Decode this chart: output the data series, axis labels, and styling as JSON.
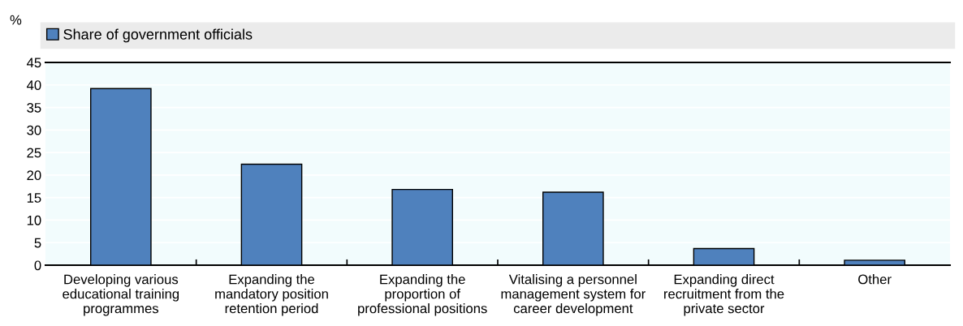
{
  "chart_data": {
    "type": "bar",
    "ylabel": "%",
    "categories": [
      "Developing various\neducational training\nprogrammes",
      "Expanding the\nmandatory position\nretention period",
      "Expanding the\nproportion of\nprofessional positions",
      "Vitalising a personnel\nmanagement system for\ncareer development",
      "Expanding direct\nrecruitment from the\nprivate sector",
      "Other"
    ],
    "series": [
      {
        "name": "Share of government officials",
        "color": "#4f81bd",
        "values": [
          39.2,
          22.4,
          16.8,
          16.2,
          3.7,
          1.1
        ]
      }
    ],
    "ylim": [
      0,
      45
    ],
    "yticks": [
      0,
      5,
      10,
      15,
      20,
      25,
      30,
      35,
      40,
      45
    ],
    "grid": "y",
    "legend": "top"
  }
}
